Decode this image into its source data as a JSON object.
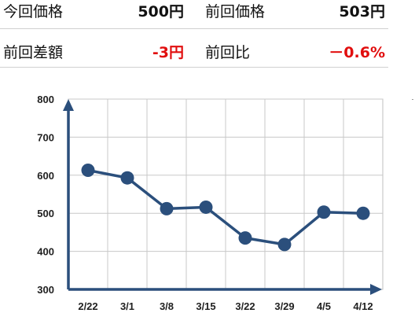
{
  "summary": {
    "current_label": "今回価格",
    "current_value": "500円",
    "previous_label": "前回価格",
    "previous_value": "503円",
    "diff_label": "前回差額",
    "diff_value": "-3円",
    "ratio_label": "前回比",
    "ratio_value": "－0.6%"
  },
  "colors": {
    "series": "#2b4f7c",
    "negative": "#e10e0e",
    "grid": "#c8c8c8",
    "plot_border": "#bfbfbf"
  },
  "chart_data": {
    "type": "line",
    "categories": [
      "2/22",
      "3/1",
      "3/8",
      "3/15",
      "3/22",
      "3/29",
      "4/5",
      "4/12"
    ],
    "series": [
      {
        "values": [
          613,
          593,
          512,
          516,
          435,
          418,
          503,
          500
        ]
      }
    ],
    "ylim": [
      300,
      800
    ],
    "yticks": [
      "800",
      "700",
      "600",
      "500",
      "400",
      "300"
    ],
    "ytick_values": [
      800,
      700,
      600,
      500,
      400,
      300
    ],
    "grid": true,
    "marker": "circle"
  }
}
